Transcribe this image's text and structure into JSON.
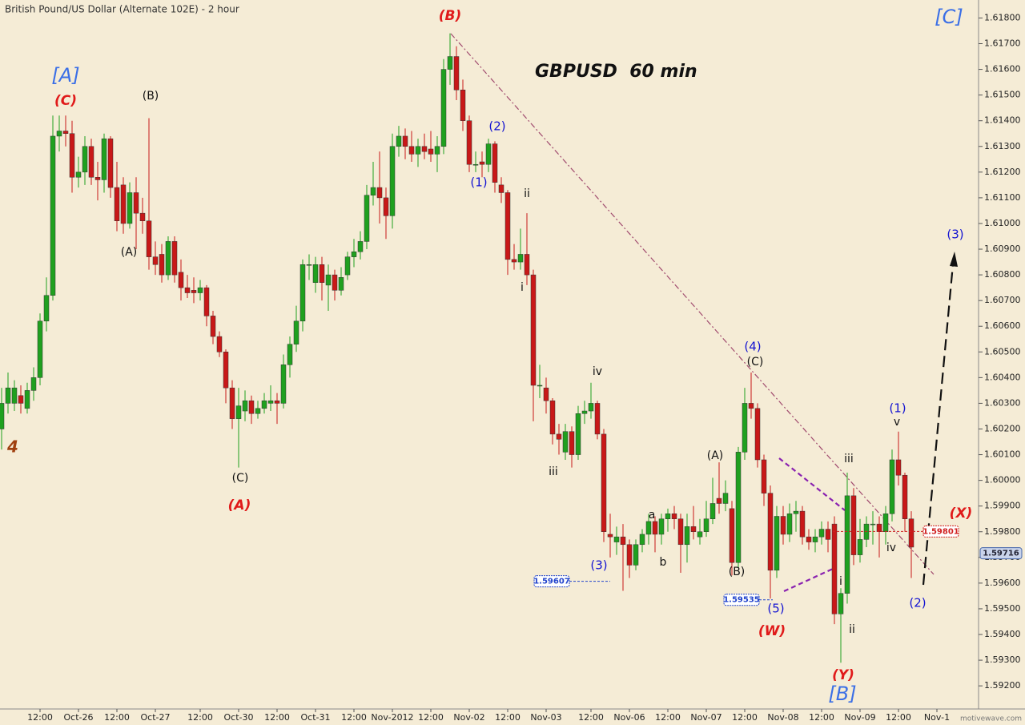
{
  "chart_data": {
    "type": "candlestick",
    "title": "British Pound/US Dollar (Alternate 102E) - 2 hour",
    "subtitle": "GBPUSD  60 min",
    "watermark": "motivewave.com",
    "up_color": "#1fa01f",
    "down_color": "#c81818",
    "ylim": [
      1.5911,
      1.6187
    ],
    "yticks": [
      {
        "value": 1.618,
        "label": "1.61800"
      },
      {
        "value": 1.617,
        "label": "1.61700"
      },
      {
        "value": 1.616,
        "label": "1.61600"
      },
      {
        "value": 1.615,
        "label": "1.61500"
      },
      {
        "value": 1.614,
        "label": "1.61400"
      },
      {
        "value": 1.613,
        "label": "1.61300"
      },
      {
        "value": 1.612,
        "label": "1.61200"
      },
      {
        "value": 1.611,
        "label": "1.61100"
      },
      {
        "value": 1.61,
        "label": "1.61000"
      },
      {
        "value": 1.609,
        "label": "1.60900"
      },
      {
        "value": 1.608,
        "label": "1.60800"
      },
      {
        "value": 1.607,
        "label": "1.60700"
      },
      {
        "value": 1.606,
        "label": "1.60600"
      },
      {
        "value": 1.605,
        "label": "1.60500"
      },
      {
        "value": 1.604,
        "label": "1.60400"
      },
      {
        "value": 1.603,
        "label": "1.60300"
      },
      {
        "value": 1.602,
        "label": "1.60200"
      },
      {
        "value": 1.601,
        "label": "1.60100"
      },
      {
        "value": 1.6,
        "label": "1.60000"
      },
      {
        "value": 1.599,
        "label": "1.59900"
      },
      {
        "value": 1.598,
        "label": "1.59800"
      },
      {
        "value": 1.597,
        "label": "1.59700"
      },
      {
        "value": 1.596,
        "label": "1.59600"
      },
      {
        "value": 1.595,
        "label": "1.59500"
      },
      {
        "value": 1.594,
        "label": "1.59400"
      },
      {
        "value": 1.593,
        "label": "1.59300"
      },
      {
        "value": 1.592,
        "label": "1.59200"
      }
    ],
    "categories": [
      null,
      null,
      null,
      null,
      null,
      null,
      "12:00",
      null,
      null,
      null,
      null,
      null,
      "Oct-26",
      null,
      null,
      null,
      null,
      null,
      "12:00",
      null,
      null,
      null,
      null,
      null,
      "Oct-27",
      null,
      null,
      null,
      null,
      null,
      null,
      "12:00",
      null,
      null,
      null,
      null,
      null,
      "Oct-30",
      null,
      null,
      null,
      null,
      null,
      "12:00",
      null,
      null,
      null,
      null,
      null,
      "Oct-31",
      null,
      null,
      null,
      null,
      null,
      "12:00",
      null,
      null,
      null,
      null,
      null,
      "Nov-2012",
      null,
      null,
      null,
      null,
      null,
      "12:00",
      null,
      null,
      null,
      null,
      null,
      "Nov-02",
      null,
      null,
      null,
      null,
      null,
      "12:00",
      null,
      null,
      null,
      null,
      null,
      "Nov-03",
      null,
      null,
      null,
      null,
      null,
      null,
      "12:00",
      null,
      null,
      null,
      null,
      null,
      "Nov-06",
      null,
      null,
      null,
      null,
      null,
      "12:00",
      null,
      null,
      null,
      null,
      null,
      "Nov-07",
      null,
      null,
      null,
      null,
      null,
      "12:00",
      null,
      null,
      null,
      null,
      null,
      "Nov-08",
      null,
      null,
      null,
      null,
      null,
      "12:00",
      null,
      null,
      null,
      null,
      null,
      "Nov-09",
      null,
      null,
      null,
      null,
      null,
      "12:00",
      null,
      null,
      null,
      null,
      null,
      "Nov-1"
    ],
    "open": [
      1.602,
      1.603,
      1.603,
      1.6033,
      1.6028,
      1.6035,
      1.604,
      1.6062,
      1.6072,
      1.6134,
      1.6136,
      1.6135,
      1.6118,
      1.612,
      1.613,
      1.6118,
      1.6117,
      1.6133,
      1.6114,
      1.6115,
      1.61,
      1.6112,
      1.6104,
      1.6101,
      1.6087,
      1.6088,
      1.608,
      1.6093,
      1.6081,
      1.6075,
      1.6074,
      1.6073,
      1.6075,
      1.6064,
      1.6056,
      1.605,
      1.6036,
      1.6024,
      1.6027,
      1.6031,
      1.6026,
      1.6028,
      1.603,
      1.6031,
      1.603,
      1.6045,
      1.6053,
      1.6062,
      1.6084,
      1.6077,
      1.6084,
      1.6076,
      1.608,
      1.6074,
      1.608,
      1.6087,
      1.6089,
      1.6093,
      1.6111,
      1.6114,
      1.611,
      1.6103,
      1.613,
      1.6134,
      1.613,
      1.6127,
      1.613,
      1.6129,
      1.6127,
      1.613,
      1.616,
      1.6165,
      1.6152,
      1.614,
      1.6123,
      1.6124,
      1.6123,
      1.6131,
      1.6115,
      1.6112,
      1.6086,
      1.6085,
      1.6088,
      1.608,
      1.6037,
      1.6036,
      1.6031,
      1.6018,
      1.6011,
      1.6019,
      1.601,
      1.6026,
      1.6027,
      1.603,
      1.6018,
      1.5979,
      1.5976,
      1.5978,
      1.5975,
      1.5967,
      1.5975,
      1.5979,
      1.5984,
      1.5979,
      1.5985,
      1.5987,
      1.5985,
      1.5975,
      1.5982,
      1.5978,
      1.598,
      1.5985,
      1.5993,
      1.5991,
      1.5989,
      1.5968,
      1.6011,
      1.603,
      1.6028,
      1.6008,
      1.5995,
      1.5965,
      1.5986,
      1.5979,
      1.5987,
      1.5988,
      1.5978,
      1.5976,
      1.5978,
      1.5981,
      1.5983,
      1.5948,
      1.5956,
      1.5994,
      1.5971,
      1.5977,
      1.5983,
      1.5983,
      1.598,
      1.5987,
      1.6008,
      1.6002,
      1.5985,
      null,
      null,
      null,
      null
    ],
    "high": [
      1.6036,
      1.6042,
      1.6039,
      1.6037,
      1.6038,
      1.6044,
      1.6065,
      1.6079,
      1.6142,
      1.6142,
      1.6142,
      1.614,
      1.6126,
      1.6134,
      1.6133,
      1.6124,
      1.6135,
      1.6134,
      1.6124,
      1.6118,
      1.6116,
      1.6118,
      1.611,
      1.6141,
      1.6093,
      1.6092,
      1.6095,
      1.6095,
      1.6086,
      1.608,
      1.6079,
      1.6078,
      1.6076,
      1.6066,
      1.6058,
      1.6051,
      1.6039,
      1.6036,
      1.6035,
      1.6033,
      1.6031,
      1.6034,
      1.6037,
      1.6034,
      1.6049,
      1.6056,
      1.6068,
      1.6086,
      1.6088,
      1.6087,
      1.6087,
      1.6084,
      1.6082,
      1.6083,
      1.6089,
      1.6094,
      1.6097,
      1.6115,
      1.6124,
      1.6128,
      1.6114,
      1.6135,
      1.6138,
      1.6137,
      1.6136,
      1.6133,
      1.6135,
      1.6136,
      1.6134,
      1.6164,
      1.6174,
      1.6169,
      1.6156,
      1.6142,
      1.6128,
      1.6128,
      1.6133,
      1.6132,
      1.6118,
      1.6113,
      1.6092,
      1.6098,
      1.6104,
      1.6082,
      1.6045,
      1.604,
      1.6032,
      1.6022,
      1.6022,
      1.6021,
      1.6029,
      1.6031,
      1.6038,
      1.6031,
      1.602,
      1.5987,
      1.5982,
      1.5983,
      1.5977,
      1.5977,
      1.5981,
      1.5987,
      1.5986,
      1.5987,
      1.5989,
      1.599,
      1.5987,
      1.5987,
      1.599,
      1.5985,
      1.5992,
      1.6001,
      1.6007,
      1.6,
      1.5992,
      1.6013,
      1.6036,
      1.6042,
      1.603,
      1.601,
      1.5998,
      1.599,
      1.599,
      1.5991,
      1.5992,
      1.599,
      1.5981,
      1.5981,
      1.5984,
      1.5984,
      1.5986,
      1.5958,
      1.6003,
      1.5997,
      1.5985,
      1.5986,
      1.5988,
      1.5986,
      1.599,
      1.6012,
      1.6019,
      1.6003,
      1.5988,
      null,
      null,
      null,
      null
    ],
    "low": [
      1.6012,
      1.6026,
      1.6027,
      1.6026,
      1.6026,
      1.6031,
      1.6037,
      1.6058,
      1.607,
      1.6128,
      1.613,
      1.6112,
      1.6114,
      1.6115,
      1.6115,
      1.6109,
      1.6112,
      1.611,
      1.6097,
      1.6096,
      1.6098,
      1.609,
      1.6096,
      1.6082,
      1.608,
      1.6077,
      1.6078,
      1.6077,
      1.607,
      1.6071,
      1.6069,
      1.607,
      1.606,
      1.6053,
      1.6048,
      1.603,
      1.602,
      1.6005,
      1.6023,
      1.6022,
      1.6024,
      1.6026,
      1.6027,
      1.6022,
      1.6028,
      1.604,
      1.605,
      1.6058,
      1.6078,
      1.6073,
      1.607,
      1.6066,
      1.607,
      1.6072,
      1.6078,
      1.6083,
      1.6086,
      1.609,
      1.6107,
      1.61,
      1.6094,
      1.6098,
      1.6126,
      1.6125,
      1.6124,
      1.6122,
      1.6125,
      1.6124,
      1.612,
      1.6127,
      1.6154,
      1.6148,
      1.6136,
      1.612,
      1.612,
      1.6118,
      1.612,
      1.6112,
      1.6108,
      1.608,
      1.6082,
      1.6082,
      1.6076,
      1.6023,
      1.6032,
      1.6026,
      1.6014,
      1.601,
      1.6008,
      1.6005,
      1.6008,
      1.6022,
      1.6024,
      1.6016,
      1.5976,
      1.597,
      1.5971,
      1.5957,
      1.5962,
      1.5965,
      1.5972,
      1.5975,
      1.5972,
      1.5975,
      1.598,
      1.5981,
      1.5964,
      1.5968,
      1.5977,
      1.5975,
      1.5978,
      1.5983,
      1.5987,
      1.5988,
      1.5963,
      1.5966,
      1.6008,
      1.6024,
      1.6005,
      1.599,
      1.5954,
      1.5962,
      1.5975,
      1.5976,
      1.598,
      1.5975,
      1.5973,
      1.5972,
      1.5975,
      1.5972,
      1.5944,
      1.5929,
      1.5952,
      1.5967,
      1.5968,
      1.5974,
      1.5975,
      1.597,
      1.5975,
      1.5984,
      1.5998,
      1.598,
      1.5962,
      null,
      null,
      null,
      null
    ],
    "close": [
      1.603,
      1.6036,
      1.6036,
      1.603,
      1.6035,
      1.604,
      1.6062,
      1.6072,
      1.6134,
      1.6136,
      1.6135,
      1.6118,
      1.612,
      1.613,
      1.6118,
      1.6117,
      1.6133,
      1.6114,
      1.6101,
      1.61,
      1.6112,
      1.6104,
      1.6101,
      1.6087,
      1.6084,
      1.608,
      1.6093,
      1.608,
      1.6075,
      1.6073,
      1.6073,
      1.6075,
      1.6064,
      1.6056,
      1.605,
      1.6036,
      1.6024,
      1.6029,
      1.6031,
      1.6026,
      1.6028,
      1.6031,
      1.6031,
      1.603,
      1.6045,
      1.6053,
      1.6062,
      1.6084,
      1.6084,
      1.6084,
      1.6077,
      1.608,
      1.6074,
      1.6079,
      1.6087,
      1.6089,
      1.6093,
      1.6111,
      1.6114,
      1.611,
      1.6103,
      1.613,
      1.6134,
      1.613,
      1.6127,
      1.613,
      1.6128,
      1.6127,
      1.613,
      1.616,
      1.6165,
      1.6152,
      1.614,
      1.6123,
      1.6123,
      1.6123,
      1.6131,
      1.6116,
      1.6112,
      1.6086,
      1.6085,
      1.6088,
      1.608,
      1.6037,
      1.6037,
      1.6031,
      1.6018,
      1.6016,
      1.6019,
      1.601,
      1.6026,
      1.6027,
      1.603,
      1.6018,
      1.598,
      1.5978,
      1.5978,
      1.5975,
      1.5967,
      1.5975,
      1.5979,
      1.5984,
      1.5979,
      1.5985,
      1.5987,
      1.5985,
      1.5975,
      1.5982,
      1.598,
      1.598,
      1.5985,
      1.5991,
      1.5991,
      1.5995,
      1.5968,
      1.6011,
      1.603,
      1.6028,
      1.6008,
      1.5995,
      1.5965,
      1.5986,
      1.5979,
      1.5987,
      1.5988,
      1.5978,
      1.5976,
      1.5978,
      1.5981,
      1.5977,
      1.5948,
      1.5956,
      1.5994,
      1.5971,
      1.5977,
      1.5983,
      1.5983,
      1.598,
      1.5987,
      1.6008,
      1.6002,
      1.5985,
      1.5974,
      null,
      null,
      null,
      null
    ],
    "price_labels": [
      1.59607,
      1.59535,
      1.59801,
      1.59716
    ],
    "annotations": [
      "[C]",
      "(B)",
      "[A]",
      "(C)",
      "(B)",
      "(A)",
      "(C)",
      "(A)",
      "4",
      "(2)",
      "(1)",
      "ii",
      "i",
      "iv",
      "iii",
      "(3)",
      "a",
      "b",
      "(A)",
      "(B)",
      "(4)",
      "(C)",
      "(5)",
      "(W)",
      "iii",
      "i",
      "ii",
      "(Y)",
      "[B]",
      "(1)",
      "v",
      "iv",
      "(2)",
      "(X)",
      "(3)"
    ]
  }
}
